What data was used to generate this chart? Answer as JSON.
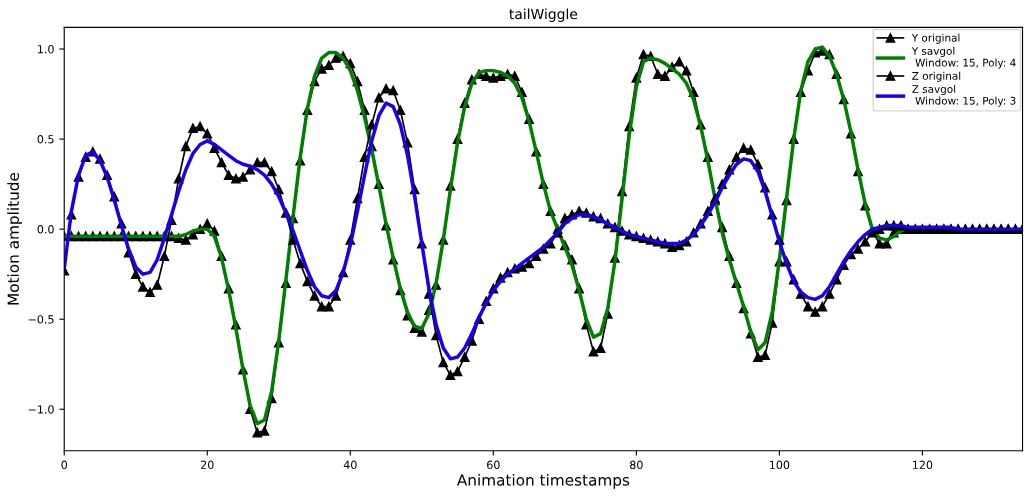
{
  "chart_data": {
    "type": "line",
    "title": "tailWiggle",
    "xlabel": "Animation timestamps",
    "ylabel": "Motion amplitude",
    "x": [
      0,
      1,
      2,
      3,
      4,
      5,
      6,
      7,
      8,
      9,
      10,
      11,
      12,
      13,
      14,
      15,
      16,
      17,
      18,
      19,
      20,
      21,
      22,
      23,
      24,
      25,
      26,
      27,
      28,
      29,
      30,
      31,
      32,
      33,
      34,
      35,
      36,
      37,
      38,
      39,
      40,
      41,
      42,
      43,
      44,
      45,
      46,
      47,
      48,
      49,
      50,
      51,
      52,
      53,
      54,
      55,
      56,
      57,
      58,
      59,
      60,
      61,
      62,
      63,
      64,
      65,
      66,
      67,
      68,
      69,
      70,
      71,
      72,
      73,
      74,
      75,
      76,
      77,
      78,
      79,
      80,
      81,
      82,
      83,
      84,
      85,
      86,
      87,
      88,
      89,
      90,
      91,
      92,
      93,
      94,
      95,
      96,
      97,
      98,
      99,
      100,
      101,
      102,
      103,
      104,
      105,
      106,
      107,
      108,
      109,
      110,
      111,
      112,
      113,
      114,
      115,
      116,
      117,
      118,
      119,
      120,
      121,
      122,
      123,
      124,
      125,
      126,
      127,
      128,
      129,
      130,
      131,
      132,
      133,
      134
    ],
    "xlim": [
      0,
      134
    ],
    "xticks": [
      0,
      20,
      40,
      60,
      80,
      100,
      120
    ],
    "ylim": [
      -1.23,
      1.12
    ],
    "yticks": [
      {
        "value": -1.0,
        "label": "−1.0"
      },
      {
        "value": -0.5,
        "label": "−0.5"
      },
      {
        "value": 0.0,
        "label": "0.0"
      },
      {
        "value": 0.5,
        "label": "0.5"
      },
      {
        "value": 1.0,
        "label": "1.0"
      }
    ],
    "grid": false,
    "legend": "top right",
    "series": [
      {
        "name": "Y original",
        "color": "#000000",
        "marker": "triangle",
        "values": [
          -0.04,
          -0.04,
          -0.04,
          -0.04,
          -0.04,
          -0.04,
          -0.04,
          -0.04,
          -0.04,
          -0.04,
          -0.04,
          -0.04,
          -0.04,
          -0.04,
          -0.04,
          -0.04,
          -0.05,
          -0.06,
          -0.03,
          0.0,
          0.03,
          -0.01,
          -0.15,
          -0.33,
          -0.53,
          -0.78,
          -1.0,
          -1.13,
          -1.12,
          -0.94,
          -0.63,
          -0.3,
          0.06,
          0.38,
          0.66,
          0.82,
          0.89,
          0.91,
          0.95,
          0.96,
          0.92,
          0.82,
          0.66,
          0.46,
          0.25,
          0.02,
          -0.17,
          -0.34,
          -0.48,
          -0.55,
          -0.57,
          -0.45,
          -0.31,
          -0.06,
          0.24,
          0.5,
          0.7,
          0.83,
          0.86,
          0.85,
          0.84,
          0.85,
          0.86,
          0.85,
          0.76,
          0.61,
          0.43,
          0.25,
          0.1,
          0.0,
          -0.09,
          -0.17,
          -0.33,
          -0.53,
          -0.68,
          -0.66,
          -0.47,
          -0.16,
          0.21,
          0.57,
          0.84,
          0.97,
          0.96,
          0.86,
          0.85,
          0.9,
          0.93,
          0.88,
          0.76,
          0.58,
          0.4,
          0.16,
          0.01,
          -0.15,
          -0.3,
          -0.44,
          -0.58,
          -0.71,
          -0.7,
          -0.52,
          -0.18,
          0.16,
          0.5,
          0.76,
          0.88,
          0.98,
          0.99,
          0.97,
          0.86,
          0.72,
          0.53,
          0.32,
          0.13,
          -0.01,
          -0.08,
          -0.08,
          -0.02,
          0.0,
          0.0,
          0.0,
          0,
          0,
          0,
          0,
          0,
          0,
          0,
          0,
          0,
          0,
          0,
          0,
          0,
          0,
          0
        ]
      },
      {
        "name": "Y savgol\n Window: 15, Poly: 4",
        "color": "#008000",
        "marker": "none",
        "values": [
          -0.04,
          -0.04,
          -0.04,
          -0.04,
          -0.04,
          -0.04,
          -0.04,
          -0.04,
          -0.04,
          -0.04,
          -0.04,
          -0.04,
          -0.04,
          -0.04,
          -0.04,
          -0.04,
          -0.04,
          -0.03,
          -0.01,
          0.0,
          0.0,
          -0.04,
          -0.16,
          -0.34,
          -0.55,
          -0.78,
          -0.98,
          -1.08,
          -1.06,
          -0.9,
          -0.62,
          -0.28,
          0.07,
          0.4,
          0.67,
          0.85,
          0.95,
          0.98,
          0.98,
          0.95,
          0.88,
          0.77,
          0.62,
          0.44,
          0.24,
          0.03,
          -0.16,
          -0.33,
          -0.46,
          -0.54,
          -0.55,
          -0.47,
          -0.3,
          -0.06,
          0.22,
          0.48,
          0.68,
          0.81,
          0.87,
          0.88,
          0.88,
          0.87,
          0.85,
          0.81,
          0.73,
          0.6,
          0.43,
          0.25,
          0.1,
          0.0,
          -0.1,
          -0.2,
          -0.34,
          -0.5,
          -0.6,
          -0.58,
          -0.44,
          -0.18,
          0.17,
          0.52,
          0.79,
          0.93,
          0.95,
          0.94,
          0.92,
          0.89,
          0.86,
          0.81,
          0.72,
          0.57,
          0.38,
          0.17,
          -0.02,
          -0.17,
          -0.3,
          -0.43,
          -0.57,
          -0.67,
          -0.63,
          -0.46,
          -0.17,
          0.17,
          0.5,
          0.77,
          0.93,
          1.0,
          1.01,
          0.96,
          0.86,
          0.72,
          0.54,
          0.33,
          0.14,
          0.0,
          -0.05,
          -0.06,
          -0.04,
          -0.01,
          0.0,
          0.0,
          null,
          null,
          null,
          null,
          null,
          null,
          null,
          null,
          null,
          null,
          null,
          null,
          null,
          null,
          null
        ]
      },
      {
        "name": "Z original",
        "color": "#000000",
        "marker": "triangle",
        "values": [
          -0.23,
          0.08,
          0.29,
          0.4,
          0.43,
          0.39,
          0.3,
          0.18,
          0.03,
          -0.13,
          -0.25,
          -0.32,
          -0.35,
          -0.31,
          -0.15,
          0.05,
          0.28,
          0.46,
          0.56,
          0.57,
          0.53,
          0.45,
          0.37,
          0.3,
          0.28,
          0.29,
          0.33,
          0.37,
          0.37,
          0.32,
          0.22,
          0.09,
          -0.06,
          -0.19,
          -0.29,
          -0.37,
          -0.43,
          -0.43,
          -0.37,
          -0.24,
          -0.06,
          0.17,
          0.4,
          0.58,
          0.73,
          0.78,
          0.77,
          0.66,
          0.48,
          0.22,
          -0.08,
          -0.36,
          -0.59,
          -0.74,
          -0.81,
          -0.79,
          -0.71,
          -0.62,
          -0.5,
          -0.4,
          -0.33,
          -0.27,
          -0.24,
          -0.22,
          -0.21,
          -0.19,
          -0.15,
          -0.11,
          -0.08,
          -0.02,
          0.06,
          0.08,
          0.1,
          0.09,
          0.07,
          0.06,
          0.03,
          0.01,
          -0.01,
          -0.03,
          -0.04,
          -0.05,
          -0.06,
          -0.07,
          -0.08,
          -0.1,
          -0.09,
          -0.07,
          -0.02,
          0.03,
          0.1,
          0.17,
          0.25,
          0.33,
          0.4,
          0.45,
          0.44,
          0.36,
          0.23,
          0.08,
          -0.06,
          -0.18,
          -0.28,
          -0.36,
          -0.43,
          -0.46,
          -0.43,
          -0.36,
          -0.28,
          -0.2,
          -0.14,
          -0.11,
          -0.07,
          -0.02,
          0.0,
          0.02,
          0.02,
          0.02,
          0.0,
          0.0,
          0,
          0,
          0,
          0,
          0,
          0,
          0,
          0,
          0,
          0,
          0,
          0,
          0,
          0,
          0
        ]
      },
      {
        "name": "Z savgol\n Window: 15, Poly: 3",
        "color": "#1a00f0",
        "marker": "none",
        "values": [
          -0.22,
          0.1,
          0.3,
          0.41,
          0.43,
          0.38,
          0.29,
          0.16,
          0.02,
          -0.11,
          -0.21,
          -0.25,
          -0.24,
          -0.17,
          -0.05,
          0.08,
          0.21,
          0.33,
          0.42,
          0.47,
          0.49,
          0.47,
          0.44,
          0.41,
          0.38,
          0.36,
          0.35,
          0.33,
          0.3,
          0.25,
          0.18,
          0.09,
          -0.01,
          -0.12,
          -0.23,
          -0.32,
          -0.37,
          -0.38,
          -0.34,
          -0.24,
          -0.09,
          0.1,
          0.3,
          0.49,
          0.63,
          0.7,
          0.68,
          0.58,
          0.41,
          0.18,
          -0.08,
          -0.33,
          -0.53,
          -0.66,
          -0.72,
          -0.71,
          -0.66,
          -0.58,
          -0.49,
          -0.41,
          -0.34,
          -0.29,
          -0.25,
          -0.22,
          -0.19,
          -0.16,
          -0.13,
          -0.1,
          -0.06,
          -0.02,
          0.03,
          0.06,
          0.08,
          0.08,
          0.07,
          0.05,
          0.03,
          0.01,
          -0.01,
          -0.03,
          -0.04,
          -0.05,
          -0.06,
          -0.07,
          -0.08,
          -0.08,
          -0.08,
          -0.06,
          -0.03,
          0.02,
          0.08,
          0.15,
          0.23,
          0.3,
          0.36,
          0.39,
          0.38,
          0.32,
          0.21,
          0.07,
          -0.07,
          -0.19,
          -0.29,
          -0.35,
          -0.38,
          -0.39,
          -0.37,
          -0.32,
          -0.25,
          -0.18,
          -0.12,
          -0.07,
          -0.03,
          0.0,
          0.01,
          0.02,
          0.02,
          0.02,
          0.01,
          0.01,
          0.01,
          0.01,
          0.01,
          0.01,
          0.01,
          0,
          0,
          0,
          0,
          0,
          0,
          0,
          0,
          0,
          0
        ]
      }
    ]
  }
}
